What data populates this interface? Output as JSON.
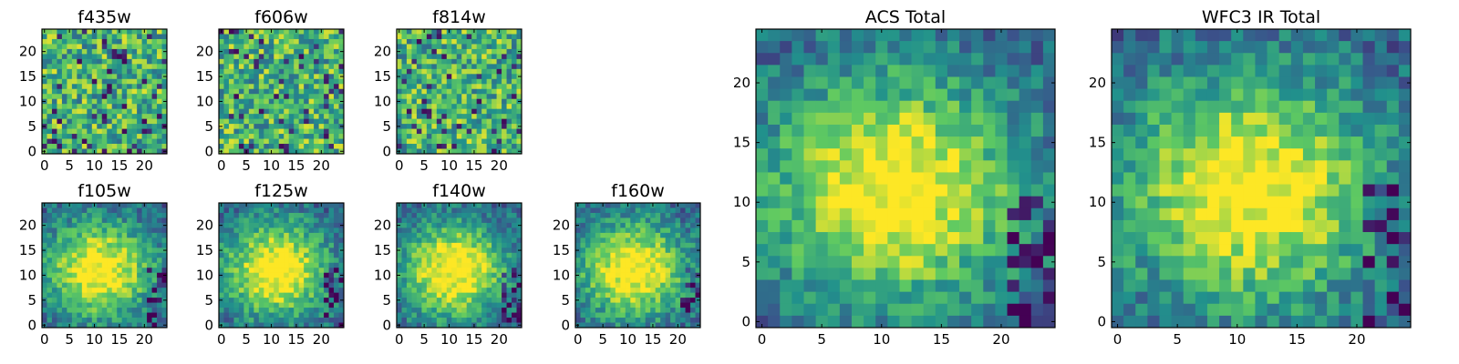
{
  "chart_data": [
    {
      "type": "heatmap",
      "title": "f435w",
      "xticks": [
        "0",
        "5",
        "10",
        "15",
        "20"
      ],
      "yticks": [
        "0",
        "5",
        "10",
        "15",
        "20"
      ],
      "size": 25,
      "colormap": "viridis"
    },
    {
      "type": "heatmap",
      "title": "f606w",
      "xticks": [
        "0",
        "5",
        "10",
        "15",
        "20"
      ],
      "yticks": [
        "0",
        "5",
        "10",
        "15",
        "20"
      ],
      "size": 25,
      "colormap": "viridis"
    },
    {
      "type": "heatmap",
      "title": "f814w",
      "xticks": [
        "0",
        "5",
        "10",
        "15",
        "20"
      ],
      "yticks": [
        "0",
        "5",
        "10",
        "15",
        "20"
      ],
      "size": 25,
      "colormap": "viridis"
    },
    {
      "type": "heatmap",
      "title": "f105w",
      "xticks": [
        "0",
        "5",
        "10",
        "15",
        "20"
      ],
      "yticks": [
        "0",
        "5",
        "10",
        "15",
        "20"
      ],
      "size": 25,
      "colormap": "viridis"
    },
    {
      "type": "heatmap",
      "title": "f125w",
      "xticks": [
        "0",
        "5",
        "10",
        "15",
        "20"
      ],
      "yticks": [
        "0",
        "5",
        "10",
        "15",
        "20"
      ],
      "size": 25,
      "colormap": "viridis"
    },
    {
      "type": "heatmap",
      "title": "f140w",
      "xticks": [
        "0",
        "5",
        "10",
        "15",
        "20"
      ],
      "yticks": [
        "0",
        "5",
        "10",
        "15",
        "20"
      ],
      "size": 25,
      "colormap": "viridis"
    },
    {
      "type": "heatmap",
      "title": "f160w",
      "xticks": [
        "0",
        "5",
        "10",
        "15",
        "20"
      ],
      "yticks": [
        "0",
        "5",
        "10",
        "15",
        "20"
      ],
      "size": 25,
      "colormap": "viridis"
    },
    {
      "type": "heatmap",
      "title": "ACS Total",
      "xticks": [
        "0",
        "5",
        "10",
        "15",
        "20"
      ],
      "yticks": [
        "0",
        "5",
        "10",
        "15",
        "20"
      ],
      "size": 25,
      "colormap": "viridis"
    },
    {
      "type": "heatmap",
      "title": "WFC3 IR Total",
      "xticks": [
        "0",
        "5",
        "10",
        "15",
        "20"
      ],
      "yticks": [
        "0",
        "5",
        "10",
        "15",
        "20"
      ],
      "size": 25,
      "colormap": "viridis"
    }
  ]
}
